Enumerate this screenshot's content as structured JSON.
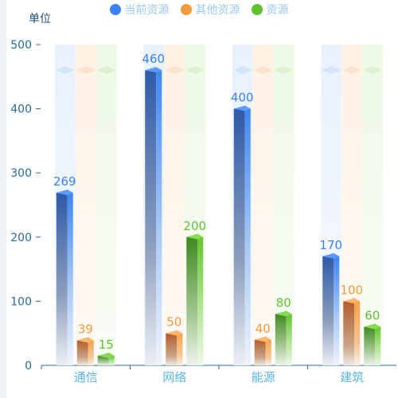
{
  "chart_data": {
    "type": "bar",
    "ylabel": "单位",
    "categories": [
      "通信",
      "网络",
      "能源",
      "建筑"
    ],
    "series": [
      {
        "name": "当前资源",
        "values": [
          269,
          460,
          400,
          170
        ]
      },
      {
        "name": "其他资源",
        "values": [
          39,
          50,
          40,
          100
        ]
      },
      {
        "name": "资源",
        "values": [
          15,
          200,
          80,
          60
        ]
      }
    ],
    "ylim": [
      0,
      500
    ],
    "yticks": [
      0,
      100,
      200,
      300,
      400,
      500
    ],
    "legend_position": "top-center",
    "colors": {
      "series0": "#3b82f6",
      "series1": "#f59a3c",
      "series2": "#5fc22e",
      "axis": "#2a6a9a",
      "category_label": "#5ab4e8"
    }
  }
}
